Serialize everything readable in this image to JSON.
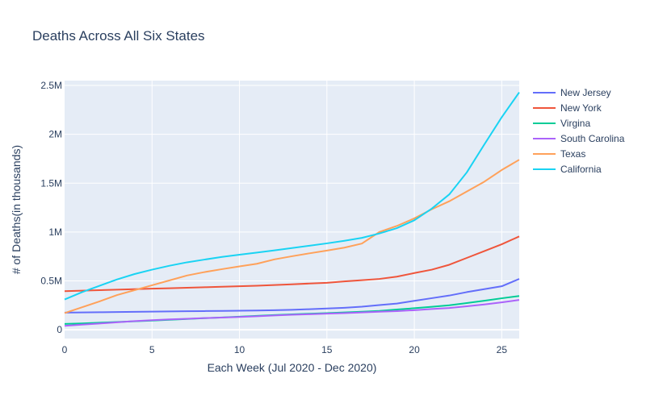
{
  "chart_data": {
    "type": "line",
    "title": "Deaths Across All Six States",
    "xlabel": "Each Week (Jul 2020 - Dec 2020)",
    "ylabel": "# of Deaths(in thousands)",
    "xlim": [
      0,
      26
    ],
    "ylim": [
      -90000,
      2550000
    ],
    "xticks": [
      0,
      5,
      10,
      15,
      20,
      25
    ],
    "yticks": [
      {
        "value": 0,
        "label": "0"
      },
      {
        "value": 500000,
        "label": "0.5M"
      },
      {
        "value": 1000000,
        "label": "1M"
      },
      {
        "value": 1500000,
        "label": "1.5M"
      },
      {
        "value": 2000000,
        "label": "2M"
      },
      {
        "value": 2500000,
        "label": "2.5M"
      }
    ],
    "grid": true,
    "legend_position": "right",
    "background": "#e5ecf6",
    "x": [
      0,
      1,
      2,
      3,
      4,
      5,
      6,
      7,
      8,
      9,
      10,
      11,
      12,
      13,
      14,
      15,
      16,
      17,
      18,
      19,
      20,
      21,
      22,
      23,
      24,
      25,
      26
    ],
    "series": [
      {
        "name": "New Jersey",
        "color": "#636efa",
        "values": [
          175000,
          177000,
          179000,
          181000,
          183000,
          185000,
          187000,
          189000,
          191000,
          193000,
          195000,
          197000,
          200000,
          204000,
          210000,
          217000,
          225000,
          236000,
          252000,
          268000,
          296000,
          323000,
          350000,
          385000,
          415000,
          445000,
          520000
        ]
      },
      {
        "name": "New York",
        "color": "#ef553b",
        "values": [
          395000,
          400000,
          405000,
          410000,
          415000,
          420000,
          425000,
          430000,
          435000,
          440000,
          445000,
          450000,
          458000,
          465000,
          473000,
          480000,
          495000,
          507000,
          520000,
          543000,
          580000,
          615000,
          665000,
          735000,
          805000,
          875000,
          955000
        ]
      },
      {
        "name": "Virgina",
        "color": "#00cc96",
        "values": [
          60000,
          65000,
          72000,
          79000,
          86000,
          94000,
          102000,
          110000,
          118000,
          126000,
          134000,
          142000,
          150000,
          157000,
          164000,
          170000,
          177000,
          184000,
          193000,
          207000,
          220000,
          235000,
          250000,
          273000,
          297000,
          322000,
          345000
        ]
      },
      {
        "name": "South Carolina",
        "color": "#ab63fa",
        "values": [
          40000,
          52000,
          64000,
          76000,
          88000,
          98000,
          106000,
          112000,
          119000,
          125000,
          131000,
          138000,
          146000,
          153000,
          159000,
          165000,
          170000,
          177000,
          184000,
          191000,
          200000,
          212000,
          222000,
          240000,
          259000,
          280000,
          305000
        ]
      },
      {
        "name": "Texas",
        "color": "#ffa15a",
        "values": [
          170000,
          230000,
          290000,
          355000,
          405000,
          455000,
          505000,
          555000,
          590000,
          620000,
          648000,
          675000,
          720000,
          752000,
          782000,
          810000,
          840000,
          882000,
          1000000,
          1062000,
          1140000,
          1233000,
          1315000,
          1415000,
          1515000,
          1635000,
          1740000
        ]
      },
      {
        "name": "California",
        "color": "#19d3f3",
        "values": [
          310000,
          385000,
          450000,
          515000,
          570000,
          615000,
          655000,
          690000,
          718000,
          745000,
          768000,
          790000,
          812000,
          836000,
          860000,
          884000,
          910000,
          940000,
          985000,
          1040000,
          1120000,
          1240000,
          1385000,
          1610000,
          1895000,
          2175000,
          2430000
        ]
      }
    ]
  }
}
